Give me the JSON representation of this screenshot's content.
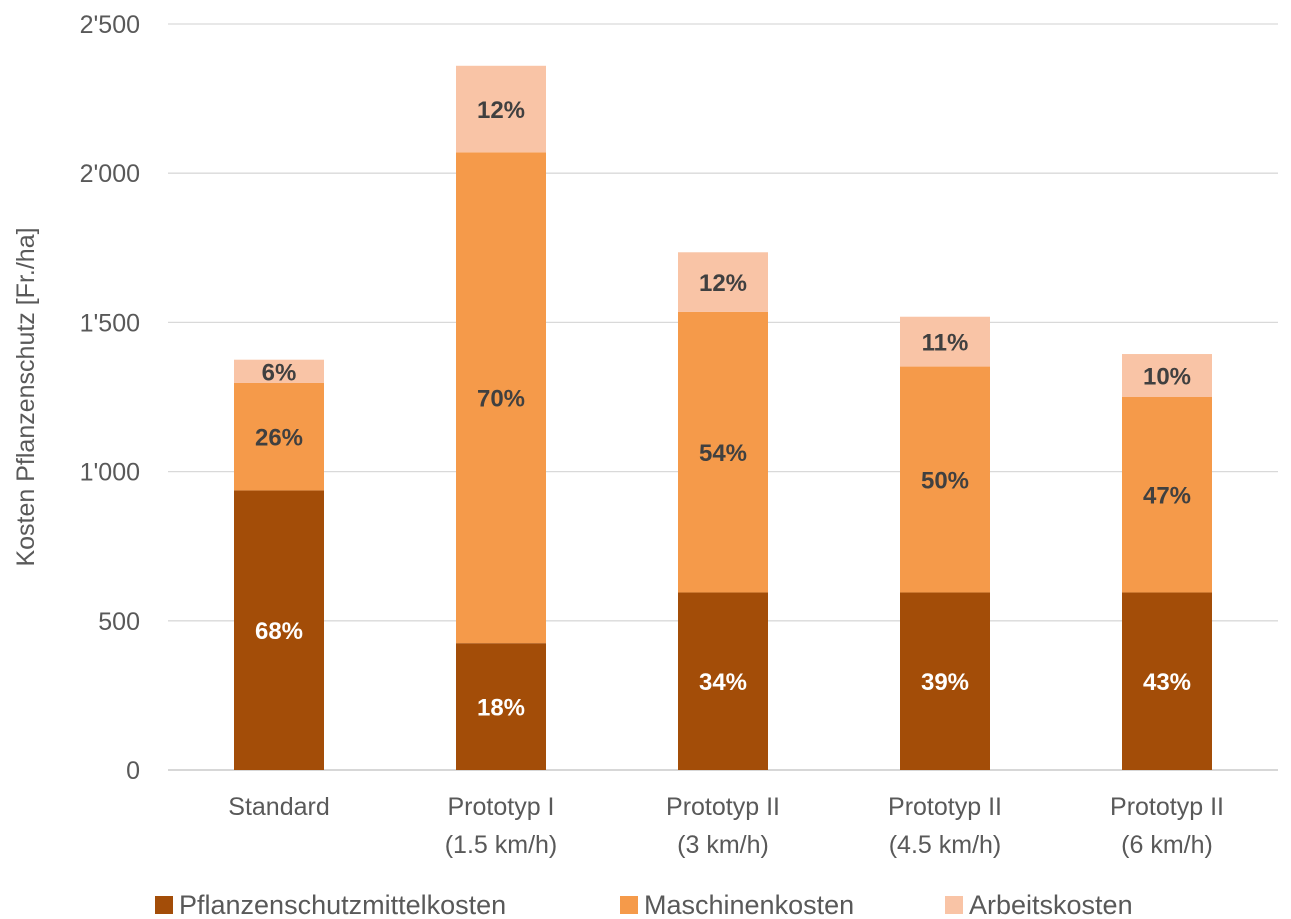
{
  "chart_data": {
    "type": "bar",
    "stacked": true,
    "ylabel": "Kosten Pflanzenschutz  [Fr./ha]",
    "ylim": [
      0,
      2500
    ],
    "yticks": [
      0,
      500,
      1000,
      1500,
      2000,
      2500
    ],
    "ytick_labels": [
      "0",
      "500",
      "1'000",
      "1'500",
      "2'000",
      "2'500"
    ],
    "grid": true,
    "legend_position": "bottom",
    "categories": [
      [
        "Standard"
      ],
      [
        "Prototyp I",
        "(1.5 km/h)"
      ],
      [
        "Prototyp II",
        "(3 km/h)"
      ],
      [
        "Prototyp II",
        "(4.5 km/h)"
      ],
      [
        "Prototyp II",
        "(6 km/h)"
      ]
    ],
    "series": [
      {
        "name": "Pflanzenschutzmittelkosten",
        "color": "#A34D08",
        "label_color": "#FFFFFF",
        "values": [
          937,
          425,
          595,
          595,
          595
        ],
        "labels": [
          "68%",
          "18%",
          "34%",
          "39%",
          "43%"
        ]
      },
      {
        "name": "Maschinenkosten",
        "color": "#F59A4A",
        "label_color": "#404040",
        "values": [
          360,
          1645,
          940,
          757,
          655
        ],
        "labels": [
          "26%",
          "70%",
          "54%",
          "50%",
          "47%"
        ]
      },
      {
        "name": "Arbeitskosten",
        "color": "#F9C4A6",
        "label_color": "#404040",
        "values": [
          78,
          290,
          200,
          167,
          144
        ],
        "labels": [
          "6%",
          "12%",
          "12%",
          "11%",
          "10%"
        ]
      }
    ]
  }
}
